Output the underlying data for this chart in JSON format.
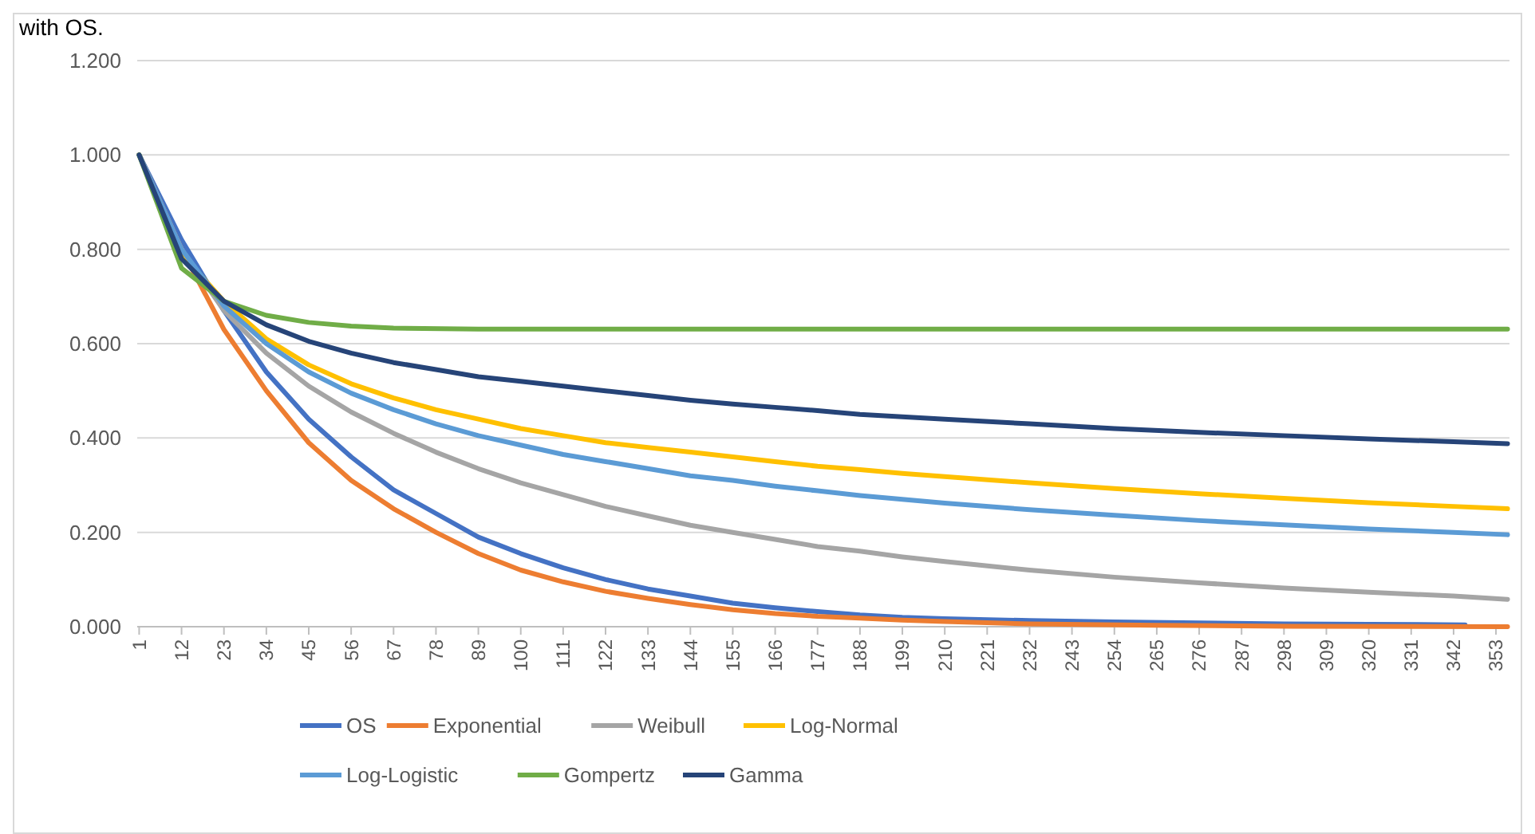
{
  "chart_data": {
    "type": "line",
    "annotations": [
      "with OS."
    ],
    "xlim": [
      0.5,
      356.5
    ],
    "xticks": [
      1,
      12,
      23,
      34,
      45,
      56,
      67,
      78,
      89,
      100,
      111,
      122,
      133,
      144,
      155,
      166,
      177,
      188,
      199,
      210,
      221,
      232,
      243,
      254,
      265,
      276,
      287,
      298,
      309,
      320,
      331,
      342,
      353
    ],
    "ylim": [
      0,
      1.2
    ],
    "yticks": [
      {
        "value": 0,
        "label": "0.000"
      },
      {
        "value": 0.2,
        "label": "0.200"
      },
      {
        "value": 0.4,
        "label": "0.400"
      },
      {
        "value": 0.6,
        "label": "0.600"
      },
      {
        "value": 0.8,
        "label": "0.800"
      },
      {
        "value": 1,
        "label": "1.000"
      },
      {
        "value": 1.2,
        "label": "1.200"
      }
    ],
    "grid": "y",
    "legend": "bottom",
    "marker": "none",
    "line_style": "solid",
    "series": [
      {
        "name": "OS",
        "color": "#4472c4",
        "x": [
          1,
          12,
          23,
          34,
          45,
          56,
          67,
          78,
          89,
          100,
          111,
          122,
          133,
          144,
          155,
          166,
          177,
          188,
          199,
          210,
          232,
          254,
          276,
          298,
          320,
          345
        ],
        "values": [
          1.0,
          0.82,
          0.67,
          0.54,
          0.44,
          0.36,
          0.29,
          0.24,
          0.19,
          0.155,
          0.125,
          0.1,
          0.08,
          0.065,
          0.05,
          0.04,
          0.032,
          0.025,
          0.02,
          0.017,
          0.013,
          0.01,
          0.008,
          0.006,
          0.005,
          0.004
        ]
      },
      {
        "name": "Exponential",
        "color": "#ed7d31",
        "x": [
          1,
          12,
          23,
          34,
          45,
          56,
          67,
          78,
          89,
          100,
          111,
          122,
          133,
          144,
          155,
          166,
          177,
          188,
          199,
          210,
          232,
          265,
          300,
          356
        ],
        "values": [
          1.0,
          0.8,
          0.63,
          0.5,
          0.39,
          0.31,
          0.25,
          0.2,
          0.155,
          0.12,
          0.095,
          0.075,
          0.06,
          0.047,
          0.036,
          0.028,
          0.022,
          0.018,
          0.014,
          0.011,
          0.006,
          0.003,
          0.001,
          0.0
        ]
      },
      {
        "name": "Weibull",
        "color": "#a5a5a5",
        "x": [
          1,
          12,
          23,
          34,
          45,
          56,
          67,
          78,
          89,
          100,
          111,
          122,
          133,
          144,
          155,
          166,
          177,
          188,
          199,
          210,
          232,
          254,
          276,
          298,
          320,
          342,
          356
        ],
        "values": [
          1.0,
          0.8,
          0.67,
          0.58,
          0.51,
          0.455,
          0.41,
          0.37,
          0.335,
          0.305,
          0.28,
          0.255,
          0.235,
          0.215,
          0.2,
          0.185,
          0.17,
          0.16,
          0.148,
          0.138,
          0.12,
          0.105,
          0.093,
          0.082,
          0.073,
          0.065,
          0.058
        ]
      },
      {
        "name": "Log-Normal",
        "color": "#ffc000",
        "x": [
          1,
          12,
          23,
          34,
          45,
          56,
          67,
          78,
          89,
          100,
          111,
          122,
          133,
          144,
          155,
          166,
          177,
          188,
          199,
          210,
          232,
          254,
          276,
          298,
          320,
          342,
          356
        ],
        "values": [
          1.0,
          0.79,
          0.69,
          0.61,
          0.555,
          0.515,
          0.485,
          0.46,
          0.44,
          0.42,
          0.405,
          0.39,
          0.38,
          0.37,
          0.36,
          0.35,
          0.34,
          0.333,
          0.325,
          0.318,
          0.305,
          0.293,
          0.282,
          0.272,
          0.263,
          0.255,
          0.25
        ]
      },
      {
        "name": "Log-Logistic",
        "color": "#5b9bd5",
        "x": [
          1,
          12,
          23,
          34,
          45,
          56,
          67,
          78,
          89,
          100,
          111,
          122,
          133,
          144,
          155,
          166,
          177,
          188,
          199,
          210,
          232,
          254,
          276,
          298,
          320,
          342,
          356
        ],
        "values": [
          1.0,
          0.8,
          0.68,
          0.6,
          0.54,
          0.495,
          0.46,
          0.43,
          0.405,
          0.385,
          0.365,
          0.35,
          0.335,
          0.32,
          0.31,
          0.298,
          0.288,
          0.278,
          0.27,
          0.262,
          0.248,
          0.236,
          0.225,
          0.216,
          0.207,
          0.2,
          0.195
        ]
      },
      {
        "name": "Gompertz",
        "color": "#70ad47",
        "x": [
          1,
          12,
          23,
          34,
          45,
          56,
          67,
          89,
          356
        ],
        "values": [
          1.0,
          0.76,
          0.69,
          0.66,
          0.645,
          0.637,
          0.633,
          0.631,
          0.631
        ]
      },
      {
        "name": "Gamma",
        "color": "#264478",
        "x": [
          1,
          12,
          23,
          34,
          45,
          56,
          67,
          78,
          89,
          100,
          111,
          122,
          133,
          144,
          155,
          166,
          177,
          188,
          199,
          210,
          232,
          254,
          276,
          298,
          320,
          342,
          356
        ],
        "values": [
          1.0,
          0.78,
          0.69,
          0.64,
          0.605,
          0.58,
          0.56,
          0.545,
          0.53,
          0.52,
          0.51,
          0.5,
          0.49,
          0.48,
          0.472,
          0.465,
          0.458,
          0.45,
          0.445,
          0.44,
          0.43,
          0.42,
          0.412,
          0.405,
          0.398,
          0.392,
          0.388
        ]
      }
    ]
  }
}
